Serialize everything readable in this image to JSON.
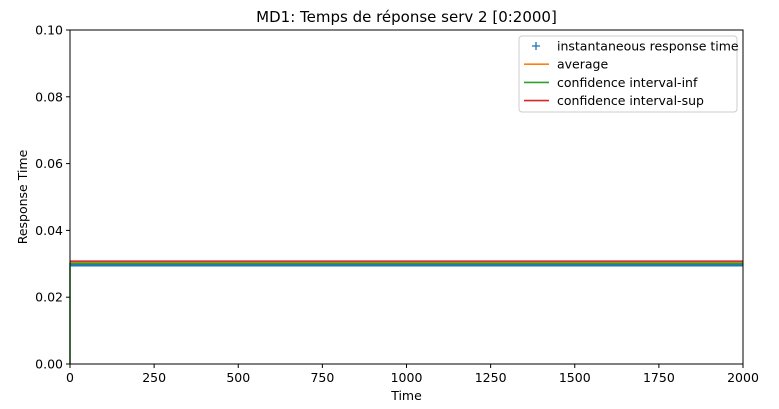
{
  "chart_data": {
    "type": "line",
    "title": "MD1: Temps de réponse serv 2 [0:2000]",
    "xlabel": "Time",
    "ylabel": "Response Time",
    "xlim": [
      0,
      2000
    ],
    "ylim": [
      0,
      0.1
    ],
    "x_ticks": [
      0,
      250,
      500,
      750,
      1000,
      1250,
      1500,
      1750,
      2000
    ],
    "y_ticks": [
      0.0,
      0.02,
      0.04,
      0.06,
      0.08,
      0.1
    ],
    "x_tick_labels": [
      "0",
      "250",
      "500",
      "750",
      "1000",
      "1250",
      "1500",
      "1750",
      "2000"
    ],
    "y_tick_labels": [
      "0.00",
      "0.02",
      "0.04",
      "0.06",
      "0.08",
      "0.10"
    ],
    "grid": false,
    "legend_position": "top-right",
    "series": [
      {
        "name": "instantaneous response time",
        "kind": "scatter-plus",
        "color": "#1f77b4",
        "x_range": [
          0,
          2000
        ],
        "y_value": 0.0298
      },
      {
        "name": "average",
        "kind": "line",
        "color": "#ff7f0e",
        "x": [
          0,
          2000
        ],
        "y": [
          0.0303,
          0.0303
        ]
      },
      {
        "name": "confidence interval-inf",
        "kind": "line",
        "color": "#2ca02c",
        "x": [
          0,
          0,
          2000
        ],
        "y": [
          0.0,
          0.0301,
          0.0301
        ]
      },
      {
        "name": "confidence interval-sup",
        "kind": "line",
        "color": "#d62728",
        "x": [
          0,
          2000
        ],
        "y": [
          0.0308,
          0.0308
        ]
      }
    ]
  }
}
